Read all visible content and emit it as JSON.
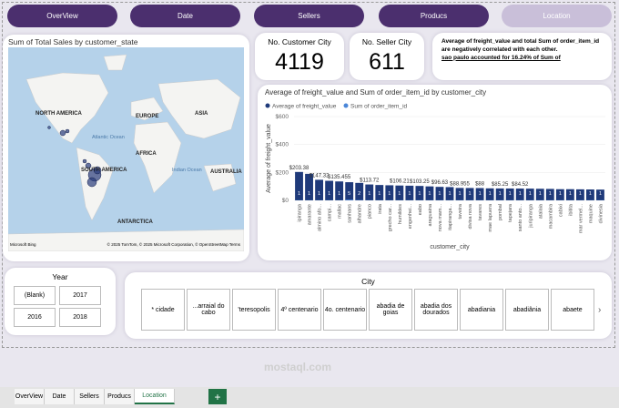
{
  "nav": [
    "OverView",
    "Date",
    "Sellers",
    "Producs",
    "Location"
  ],
  "map": {
    "title": "Sum of Total Sales by customer_state",
    "labels": [
      "NORTH AMERICA",
      "EUROPE",
      "ASIA",
      "AFRICA",
      "SOUTH AMERICA",
      "AUSTRALIA",
      "ANTARCTICA",
      "Atlantic Ocean",
      "Indian Ocean"
    ],
    "brand": "Microsoft Bing",
    "credits": "© 2025 TomTom, © 2025 Microsoft Corporation, © OpenStreetMap  Terms"
  },
  "cards": [
    {
      "label": "No. Customer City",
      "value": 4119
    },
    {
      "label": "No. Seller City",
      "value": 611
    }
  ],
  "insight": {
    "text": "Average of freight_value and total Sum of order_item_id are negatively correlated with each other.",
    "line2": "sao paulo accounted for 16.24% of Sum of"
  },
  "chart_data": {
    "type": "bar",
    "title": "Average of freight_value and Sum of order_item_id by customer_city",
    "x_label": "customer_city",
    "y_label": "Average of freight_value",
    "categories": [
      "ipiranga",
      "amarante",
      "almino afo...",
      "campi...",
      "mallac",
      "sanhans",
      "alhandre",
      "pianco",
      "irata",
      "grecho car...",
      "humildes",
      "engenhei...",
      "eabo",
      "araguaina",
      "nova mam...",
      "itapiranga...",
      "taveira",
      "divisa nova",
      "tavares",
      "mae lapuera",
      "pombal",
      "tapejara",
      "santo anto...",
      "juripiranga",
      "atalaia",
      "macambira",
      "cabixi",
      "ibitita",
      "mar vermel...",
      "maquine",
      "divinesia"
    ],
    "series": [
      {
        "name": "Average of freight_value",
        "color": "#1f3a7a",
        "values": [
          203.38,
          190,
          147.32,
          140,
          135.455,
          130,
          125,
          113.72,
          110,
          108,
          106.21,
          105,
          103.25,
          100,
          96.63,
          95,
          88.955,
          88.5,
          88,
          86,
          85.25,
          85,
          84.52,
          84,
          83,
          82,
          80,
          80,
          79,
          78,
          77
        ],
        "value_labels": [
          "$203.38",
          null,
          "$147.32",
          null,
          "$135.455",
          null,
          null,
          "$113.72",
          null,
          null,
          "$106.21",
          null,
          "$103.25",
          null,
          "$96.63",
          null,
          "$88.955",
          null,
          "$88",
          null,
          "$85.25",
          null,
          "$84.52",
          null,
          null,
          null,
          null,
          null,
          null,
          null,
          null
        ]
      },
      {
        "name": "Sum of order_item_id",
        "color": "#4a86d8",
        "values": [
          1,
          1,
          1,
          1,
          1,
          5,
          2,
          1,
          1,
          1,
          1,
          1,
          1,
          1,
          1,
          1,
          1,
          1,
          1,
          1,
          1,
          1,
          1,
          1,
          1,
          1,
          1,
          1,
          1,
          1,
          1
        ]
      }
    ],
    "ylim": [
      0,
      600
    ],
    "yticks": [
      {
        "value": 0,
        "label": "$0"
      },
      {
        "value": 200,
        "label": "$200"
      },
      {
        "value": 400,
        "label": "$400"
      },
      {
        "value": 600,
        "label": "$600"
      }
    ]
  },
  "year": {
    "title": "Year",
    "options": [
      "(Blank)",
      "2017",
      "2016",
      "2018"
    ]
  },
  "city": {
    "title": "City",
    "options": [
      "* cidade",
      "...arraial do cabo",
      "'teresopolis",
      "4º centenario",
      "4o. centenario",
      "abadia de goias",
      "abadia dos dourados",
      "abadiania",
      "abadiânia",
      "abaete"
    ]
  },
  "tabs": [
    "OverView",
    "Date",
    "Sellers",
    "Producs",
    "Location"
  ],
  "watermark": "mostaql.com"
}
